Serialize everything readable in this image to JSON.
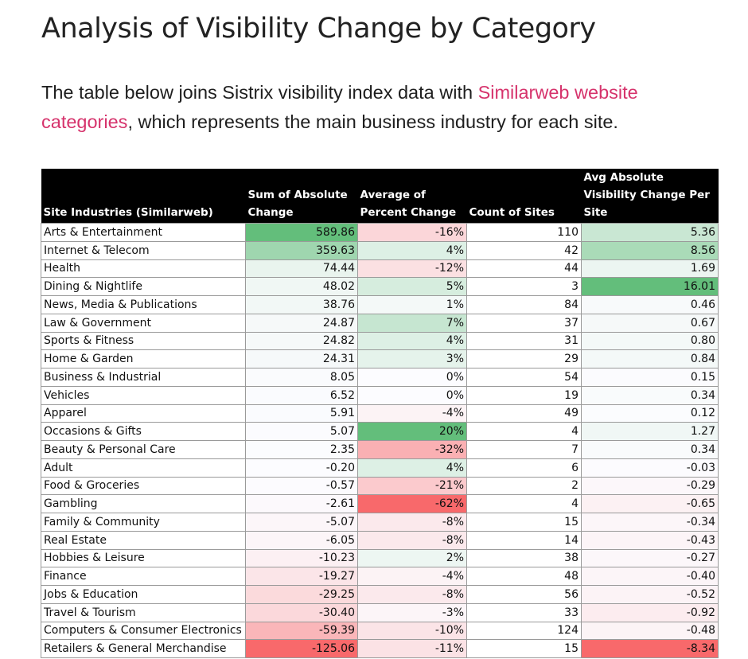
{
  "title": "Analysis of Visibility Change by Category",
  "intro": {
    "before": "The table below joins Sistrix visibility index data with ",
    "link": "Similarweb website categories",
    "after": ", which represents the main business industry for each site."
  },
  "table": {
    "headers": [
      "Site Industries (Similarweb)",
      "Sum of Absolute Change",
      "Average of Percent Change",
      "Count of Sites",
      "Avg Absolute Visibility Change Per Site"
    ],
    "rows": [
      [
        "Arts & Entertainment",
        "589.86",
        "-16%",
        "110",
        "5.36"
      ],
      [
        "Internet & Telecom",
        "359.63",
        "4%",
        "42",
        "8.56"
      ],
      [
        "Health",
        "74.44",
        "-12%",
        "44",
        "1.69"
      ],
      [
        "Dining & Nightlife",
        "48.02",
        "5%",
        "3",
        "16.01"
      ],
      [
        "News, Media & Publications",
        "38.76",
        "1%",
        "84",
        "0.46"
      ],
      [
        "Law & Government",
        "24.87",
        "7%",
        "37",
        "0.67"
      ],
      [
        "Sports & Fitness",
        "24.82",
        "4%",
        "31",
        "0.80"
      ],
      [
        "Home & Garden",
        "24.31",
        "3%",
        "29",
        "0.84"
      ],
      [
        "Business & Industrial",
        "8.05",
        "0%",
        "54",
        "0.15"
      ],
      [
        "Vehicles",
        "6.52",
        "0%",
        "19",
        "0.34"
      ],
      [
        "Apparel",
        "5.91",
        "-4%",
        "49",
        "0.12"
      ],
      [
        "Occasions & Gifts",
        "5.07",
        "20%",
        "4",
        "1.27"
      ],
      [
        "Beauty & Personal Care",
        "2.35",
        "-32%",
        "7",
        "0.34"
      ],
      [
        "Adult",
        "-0.20",
        "4%",
        "6",
        "-0.03"
      ],
      [
        "Food & Groceries",
        "-0.57",
        "-21%",
        "2",
        "-0.29"
      ],
      [
        "Gambling",
        "-2.61",
        "-62%",
        "4",
        "-0.65"
      ],
      [
        "Family & Community",
        "-5.07",
        "-8%",
        "15",
        "-0.34"
      ],
      [
        "Real Estate",
        "-6.05",
        "-8%",
        "14",
        "-0.43"
      ],
      [
        "Hobbies & Leisure",
        "-10.23",
        "2%",
        "38",
        "-0.27"
      ],
      [
        "Finance",
        "-19.27",
        "-4%",
        "48",
        "-0.40"
      ],
      [
        "Jobs & Education",
        "-29.25",
        "-8%",
        "56",
        "-0.52"
      ],
      [
        "Travel & Tourism",
        "-30.40",
        "-3%",
        "33",
        "-0.92"
      ],
      [
        "Computers & Consumer Electronics",
        "-59.39",
        "-10%",
        "124",
        "-0.48"
      ],
      [
        "Retailers & General Merchandise",
        "-125.06",
        "-11%",
        "15",
        "-8.34"
      ]
    ]
  },
  "colors": {
    "link": "#d6336c",
    "header_bg": "#000000",
    "positive_max": "#63be7b",
    "negative_max": "#f8696b",
    "neutral": "#fcfcff"
  }
}
